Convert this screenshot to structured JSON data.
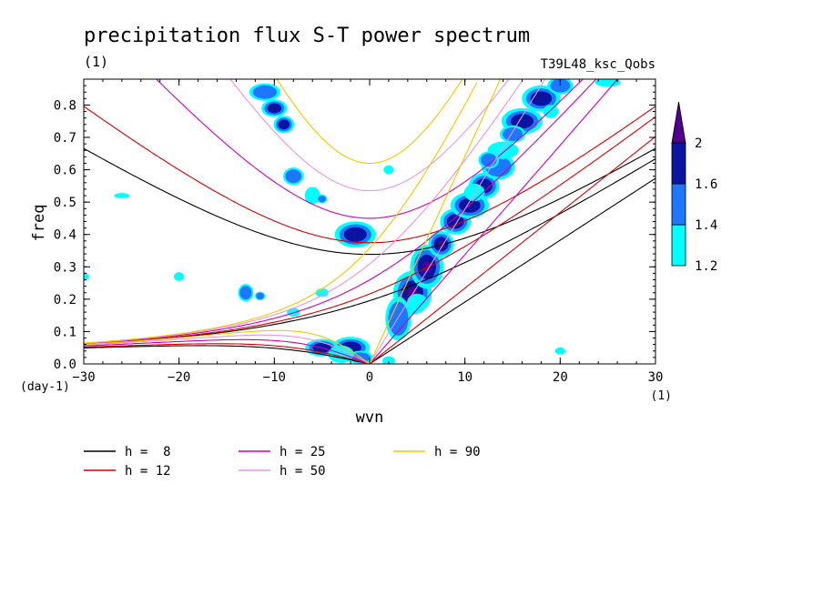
{
  "chart_data": {
    "type": "heatmap",
    "title": "precipitation flux S-T power spectrum",
    "subtitle_left": "(1)",
    "subtitle_right": "T39L48_ksc_Qobs",
    "xlabel": "wvn",
    "ylabel": "freq",
    "x_unit": "(1)",
    "y_unit": "(day-1)",
    "xlim": [
      -30,
      30
    ],
    "ylim": [
      0,
      0.88
    ],
    "x_ticks": [
      -30,
      -20,
      -10,
      0,
      10,
      20,
      30
    ],
    "y_ticks": [
      0.0,
      0.1,
      0.2,
      0.3,
      0.4,
      0.5,
      0.6,
      0.7,
      0.8
    ],
    "colorbar": {
      "levels": [
        1.2,
        1.4,
        1.6,
        2
      ],
      "colors": [
        "#00ffff",
        "#1e78ff",
        "#0a14a0",
        "#50008c"
      ]
    },
    "dispersion_curves": [
      {
        "name": "h =  8",
        "h": 8,
        "color": "#000000"
      },
      {
        "name": "h = 12",
        "h": 12,
        "color": "#d20000"
      },
      {
        "name": "h = 25",
        "h": 25,
        "color": "#c800b4"
      },
      {
        "name": "h = 50",
        "h": 50,
        "color": "#e696e6"
      },
      {
        "name": "h = 90",
        "h": 90,
        "color": "#f0c800"
      }
    ],
    "power_blobs": [
      {
        "x": 4.5,
        "y": 0.22,
        "rx": 1.5,
        "ry": 0.05,
        "level": 2
      },
      {
        "x": 6.0,
        "y": 0.3,
        "rx": 1.3,
        "ry": 0.05,
        "level": 2
      },
      {
        "x": 7.5,
        "y": 0.37,
        "rx": 1.0,
        "ry": 0.03,
        "level": 2
      },
      {
        "x": 9.0,
        "y": 0.44,
        "rx": 1.2,
        "ry": 0.03,
        "level": 1.6
      },
      {
        "x": 10.5,
        "y": 0.49,
        "rx": 1.5,
        "ry": 0.03,
        "level": 1.6
      },
      {
        "x": 12.0,
        "y": 0.55,
        "rx": 1.2,
        "ry": 0.03,
        "level": 1.6
      },
      {
        "x": 13.5,
        "y": 0.61,
        "rx": 1.3,
        "ry": 0.03,
        "level": 1.4
      },
      {
        "x": 16.0,
        "y": 0.75,
        "rx": 1.6,
        "ry": 0.03,
        "level": 1.6
      },
      {
        "x": 18.0,
        "y": 0.82,
        "rx": 1.5,
        "ry": 0.03,
        "level": 1.6
      },
      {
        "x": 20.0,
        "y": 0.86,
        "rx": 1.0,
        "ry": 0.02,
        "level": 1.4
      },
      {
        "x": 3.0,
        "y": 0.14,
        "rx": 1.0,
        "ry": 0.05,
        "level": 1.4
      },
      {
        "x": 5.0,
        "y": 0.19,
        "rx": 0.8,
        "ry": 0.02,
        "level": 1.2
      },
      {
        "x": 11.0,
        "y": 0.53,
        "rx": 0.8,
        "ry": 0.02,
        "level": 1.2
      },
      {
        "x": 14.0,
        "y": 0.66,
        "rx": 1.2,
        "ry": 0.02,
        "level": 1.2
      },
      {
        "x": 12.5,
        "y": 0.63,
        "rx": 0.8,
        "ry": 0.02,
        "level": 1.4
      },
      {
        "x": 15.0,
        "y": 0.71,
        "rx": 1.0,
        "ry": 0.02,
        "level": 1.4
      },
      {
        "x": 19.0,
        "y": 0.78,
        "rx": 0.6,
        "ry": 0.015,
        "level": 1.2
      },
      {
        "x": -1.5,
        "y": 0.4,
        "rx": 1.6,
        "ry": 0.03,
        "level": 1.6
      },
      {
        "x": -2.0,
        "y": 0.05,
        "rx": 1.5,
        "ry": 0.025,
        "level": 1.6
      },
      {
        "x": -5.0,
        "y": 0.05,
        "rx": 1.3,
        "ry": 0.02,
        "level": 1.6
      },
      {
        "x": -1.0,
        "y": 0.02,
        "rx": 1.0,
        "ry": 0.015,
        "level": 1.4
      },
      {
        "x": -11.0,
        "y": 0.84,
        "rx": 1.2,
        "ry": 0.02,
        "level": 1.4
      },
      {
        "x": -10.0,
        "y": 0.79,
        "rx": 1.0,
        "ry": 0.02,
        "level": 1.6
      },
      {
        "x": -9.0,
        "y": 0.74,
        "rx": 0.8,
        "ry": 0.02,
        "level": 1.6
      },
      {
        "x": -8.0,
        "y": 0.58,
        "rx": 0.8,
        "ry": 0.02,
        "level": 1.4
      },
      {
        "x": -13.0,
        "y": 0.22,
        "rx": 0.6,
        "ry": 0.02,
        "level": 1.4
      },
      {
        "x": -11.5,
        "y": 0.21,
        "rx": 0.4,
        "ry": 0.01,
        "level": 1.4
      },
      {
        "x": -6.0,
        "y": 0.52,
        "rx": 0.6,
        "ry": 0.02,
        "level": 1.2
      },
      {
        "x": -5.0,
        "y": 0.51,
        "rx": 0.4,
        "ry": 0.01,
        "level": 1.4
      },
      {
        "x": -20.0,
        "y": 0.27,
        "rx": 0.4,
        "ry": 0.01,
        "level": 1.2
      },
      {
        "x": -26.0,
        "y": 0.52,
        "rx": 0.6,
        "ry": 0.006,
        "level": 1.2
      },
      {
        "x": -30.0,
        "y": 0.27,
        "rx": 0.4,
        "ry": 0.01,
        "level": 1.2
      },
      {
        "x": -5.0,
        "y": 0.22,
        "rx": 0.5,
        "ry": 0.01,
        "level": 1.2
      },
      {
        "x": -8.0,
        "y": 0.16,
        "rx": 0.5,
        "ry": 0.01,
        "level": 1.2
      },
      {
        "x": 2.0,
        "y": 0.6,
        "rx": 0.4,
        "ry": 0.01,
        "level": 1.2
      },
      {
        "x": 2.0,
        "y": 0.01,
        "rx": 0.5,
        "ry": 0.01,
        "level": 1.2
      },
      {
        "x": 20.0,
        "y": 0.04,
        "rx": 0.4,
        "ry": 0.008,
        "level": 1.2
      },
      {
        "x": 25.0,
        "y": 0.87,
        "rx": 1.0,
        "ry": 0.01,
        "level": 1.2
      },
      {
        "x": -3.0,
        "y": 0.03,
        "rx": 1.0,
        "ry": 0.02,
        "level": 1.2
      }
    ]
  },
  "legend": [
    {
      "label": "h =  8",
      "color": "#000000"
    },
    {
      "label": "h = 12",
      "color": "#d20000"
    },
    {
      "label": "h = 25",
      "color": "#c800b4"
    },
    {
      "label": "h = 50",
      "color": "#e696e6"
    },
    {
      "label": "h = 90",
      "color": "#f0c800"
    }
  ]
}
